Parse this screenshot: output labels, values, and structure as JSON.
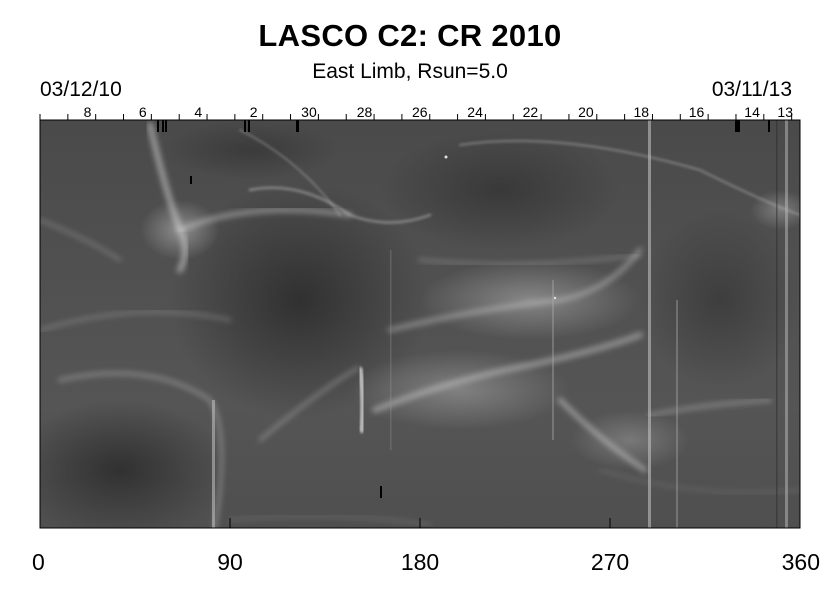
{
  "chart_data": {
    "type": "heatmap",
    "title": "LASCO C2: CR 2010",
    "subtitle": "East Limb, Rsun=5.0",
    "top_axis": {
      "start_date": "03/12/10",
      "end_date": "03/11/13",
      "day_labels": [
        "8",
        "6",
        "4",
        "2",
        "30",
        "28",
        "26",
        "24",
        "22",
        "20",
        "18",
        "16",
        "14",
        "13"
      ],
      "day_label_longitudes": [
        22.5,
        48.7,
        75,
        101.2,
        127.4,
        153.7,
        179.9,
        206.1,
        232.3,
        258.6,
        284.8,
        311,
        337.3,
        353
      ]
    },
    "x_axis": {
      "ticks": [
        0,
        90,
        180,
        270,
        360
      ],
      "range": [
        0,
        360
      ]
    },
    "colormap": "grayscale"
  }
}
